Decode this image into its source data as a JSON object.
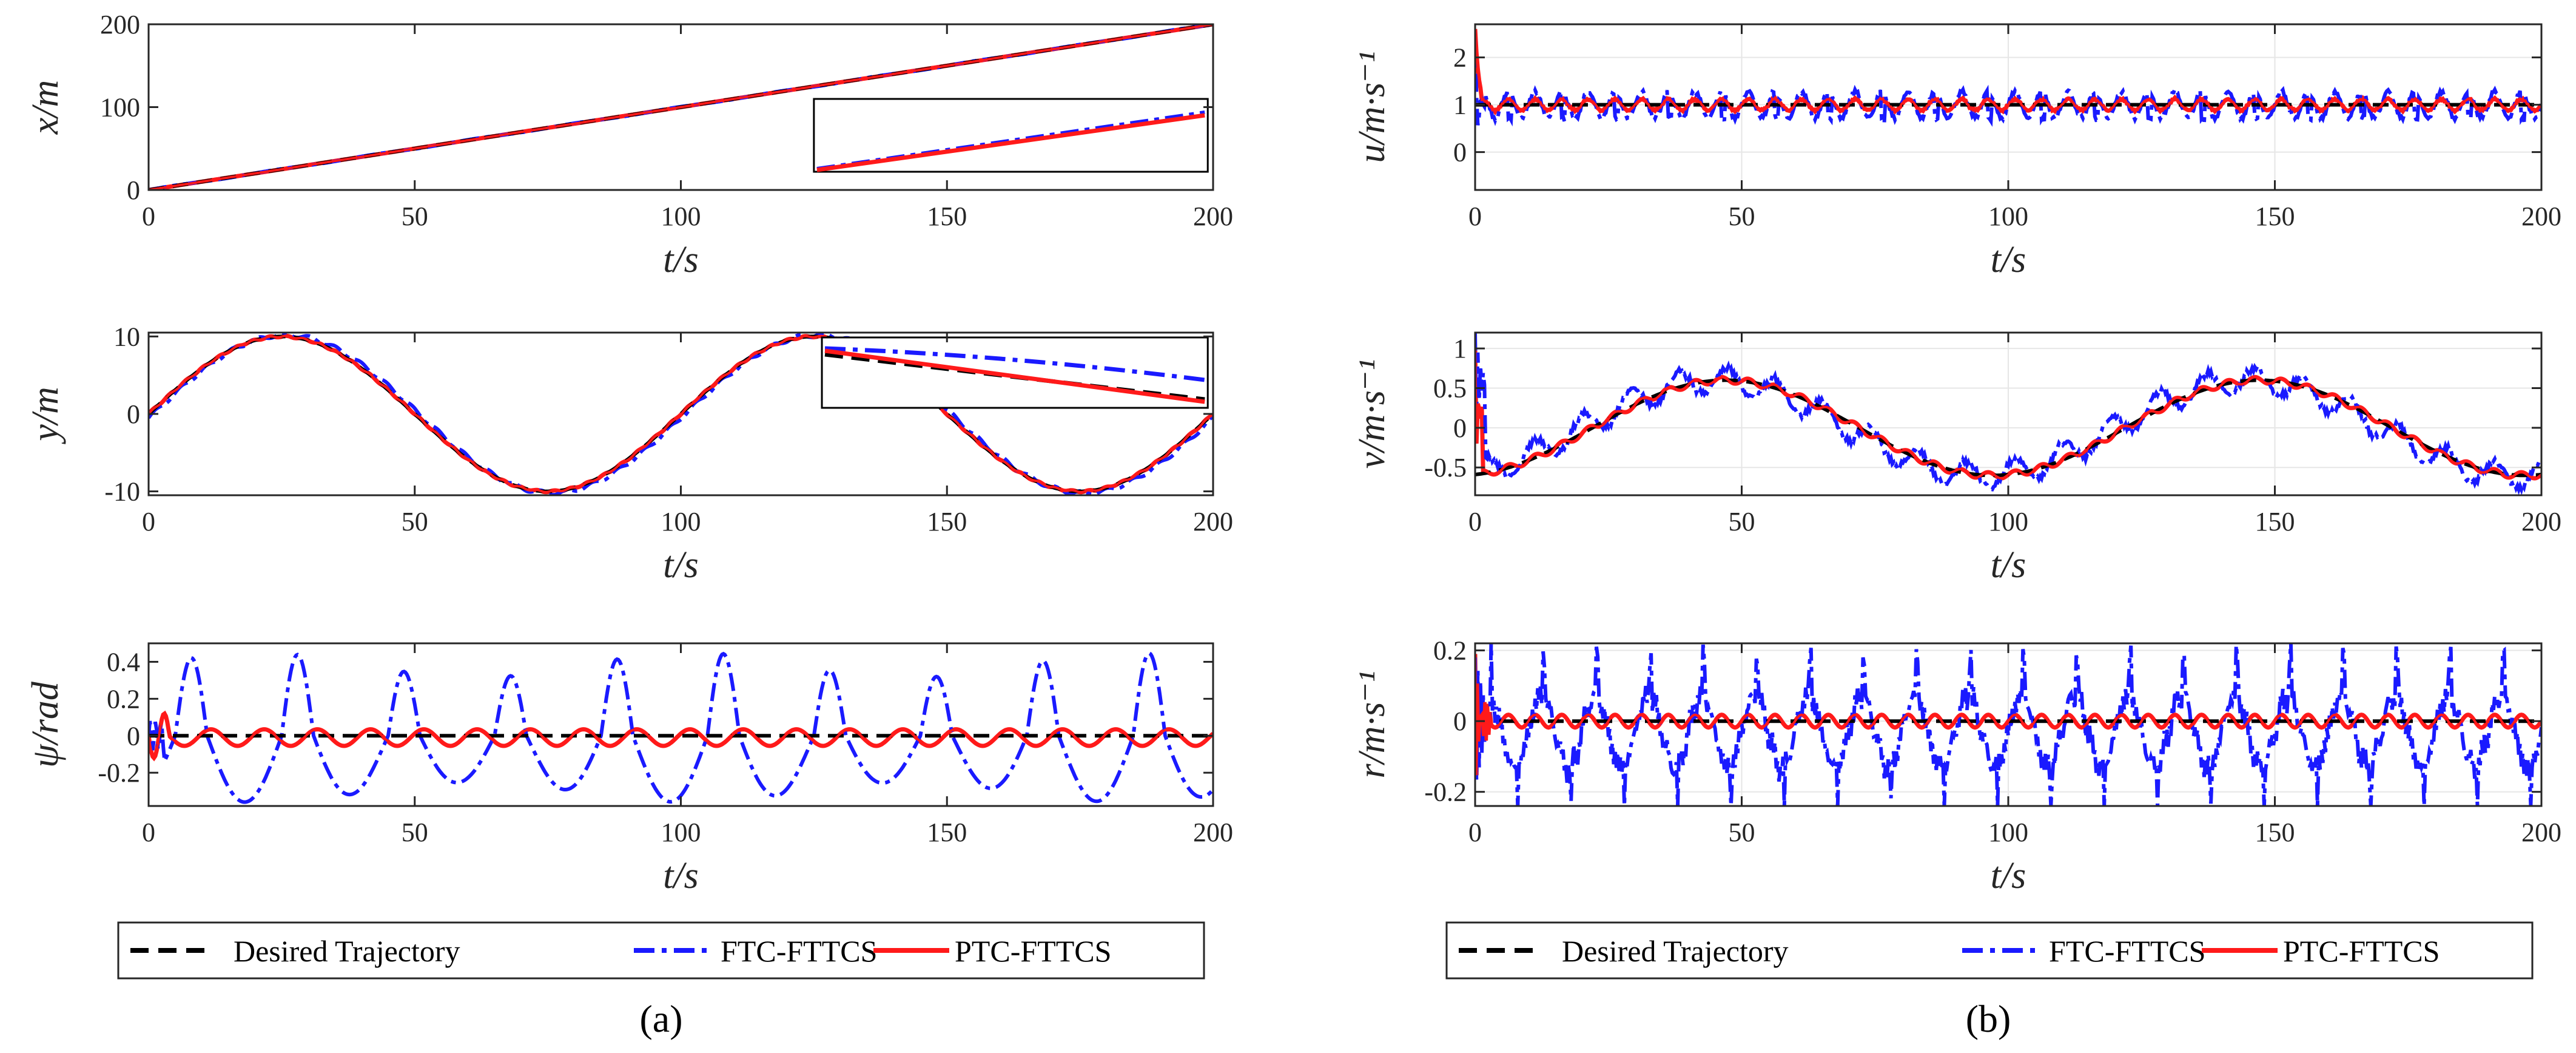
{
  "chart_data": [
    {
      "id": "x",
      "type": "line",
      "ylabel": "x/m",
      "xlabel": "t/s",
      "xlim": [
        0,
        200
      ],
      "ylim": [
        0,
        200
      ],
      "xticks": [
        "0",
        "50",
        "100",
        "150",
        "200"
      ],
      "yticks": [
        "0",
        "100",
        "200"
      ],
      "ytick_values": [
        0,
        100,
        200
      ],
      "grid": false,
      "signal": "ramp",
      "series": [
        "Desired Trajectory",
        "FTC-FTTCS",
        "PTC-FTTCS"
      ],
      "inset": "zoom box covering t 125-200 showing the three nearly overlapping ramps"
    },
    {
      "id": "y",
      "type": "line",
      "ylabel": "y/m",
      "xlabel": "t/s",
      "xlim": [
        0,
        200
      ],
      "ylim": [
        -10.5,
        10.5
      ],
      "xticks": [
        "0",
        "50",
        "100",
        "150",
        "200"
      ],
      "yticks": [
        "-10",
        "0",
        "10"
      ],
      "ytick_values": [
        -10,
        0,
        10
      ],
      "grid": false,
      "signal": "10*sin(2*pi*t/100)",
      "series": [
        "Desired Trajectory",
        "FTC-FTTCS",
        "PTC-FTTCS"
      ],
      "inset": "zoom box near t 125-200 upper region; FTC-FTTCS drifts above desired, PTC-FTTCS tracks desired"
    },
    {
      "id": "psi",
      "type": "line",
      "ylabel": "ψ/rad",
      "xlabel": "t/s",
      "xlim": [
        0,
        200
      ],
      "ylim": [
        -0.38,
        0.5
      ],
      "xticks": [
        "0",
        "50",
        "100",
        "150",
        "200"
      ],
      "yticks": [
        "-0.2",
        "0",
        "0.2",
        "0.4"
      ],
      "ytick_values": [
        -0.2,
        0,
        0.2,
        0.4
      ],
      "grid": false,
      "desired": 0,
      "ftc_amplitude": 0.45,
      "ftc_period": 20,
      "ptc_amplitude": 0.05
    },
    {
      "id": "u",
      "type": "line",
      "ylabel": "u/m·s⁻¹",
      "xlabel": "t/s",
      "xlim": [
        0,
        200
      ],
      "ylim": [
        -0.8,
        2.7
      ],
      "xticks": [
        "0",
        "50",
        "100",
        "150",
        "200"
      ],
      "yticks": [
        "0",
        "1",
        "2"
      ],
      "ytick_values": [
        0,
        1,
        2
      ],
      "grid": true,
      "desired": 1,
      "ftc_amplitude": 0.35,
      "ptc_amplitude": 0.12,
      "initial_spike": [
        2.7,
        -0.8
      ]
    },
    {
      "id": "v",
      "type": "line",
      "ylabel": "v/m·s⁻¹",
      "xlabel": "t/s",
      "xlim": [
        0,
        200
      ],
      "ylim": [
        -0.85,
        1.2
      ],
      "xticks": [
        "0",
        "50",
        "100",
        "150",
        "200"
      ],
      "yticks": [
        "-0.5",
        "0",
        "0.5",
        "1"
      ],
      "ytick_values": [
        -0.5,
        0,
        0.5,
        1
      ],
      "grid": true,
      "desired": "0.6*sin(2*pi*(t-22)/100)",
      "initial_spike": [
        1.2,
        0.1
      ]
    },
    {
      "id": "r",
      "type": "line",
      "ylabel": "r/m·s⁻¹",
      "xlabel": "t/s",
      "xlim": [
        0,
        200
      ],
      "ylim": [
        -0.24,
        0.22
      ],
      "xticks": [
        "0",
        "50",
        "100",
        "150",
        "200"
      ],
      "yticks": [
        "-0.2",
        "0",
        "0.2"
      ],
      "ytick_values": [
        -0.2,
        0,
        0.2
      ],
      "grid": true,
      "desired": 0,
      "ftc_amplitude": 0.2,
      "ptc_amplitude": 0.02,
      "initial_spike": [
        0.2,
        -0.24
      ]
    }
  ],
  "legend": {
    "entries": [
      {
        "label": "Desired Trajectory",
        "color": "#000000",
        "style": "dashed"
      },
      {
        "label": "FTC-FTTCS",
        "color": "#0000ff",
        "style": "dashdot"
      },
      {
        "label": "PTC-FTTCS",
        "color": "#ff0000",
        "style": "solid"
      }
    ]
  },
  "panel_labels": [
    "(a)",
    "(b)"
  ],
  "colors": {
    "desired": "#000000",
    "ftc": "#1a1aff",
    "ptc": "#ff1a1a"
  }
}
